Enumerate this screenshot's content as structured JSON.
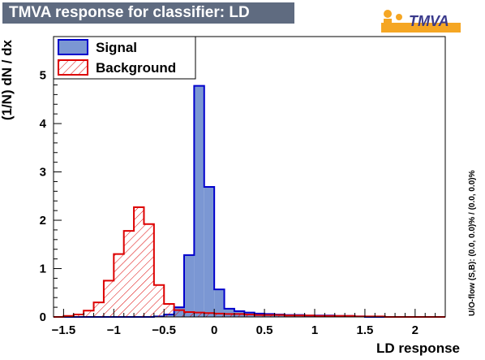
{
  "header": {
    "title": "TMVA response for classifier: LD",
    "logo_text": "TMVA"
  },
  "chart_data": {
    "type": "bar",
    "xlabel": "LD response",
    "ylabel": "(1/N) dN  /  dx",
    "side_label": "U/O-flow (S,B): (0.0, 0.0)% / (0.0, 0.0)%",
    "xlim": [
      -1.6,
      2.3
    ],
    "ylim": [
      0,
      5.8
    ],
    "x_ticks": [
      "-1.5",
      "-1",
      "-0.5",
      "0",
      "0.5",
      "1",
      "1.5",
      "2"
    ],
    "y_ticks": [
      "0",
      "1",
      "2",
      "3",
      "4",
      "5"
    ],
    "bin_edges": [
      -1.6,
      -1.5,
      -1.4,
      -1.3,
      -1.2,
      -1.1,
      -1.0,
      -0.9,
      -0.8,
      -0.7,
      -0.6,
      -0.5,
      -0.4,
      -0.3,
      -0.2,
      -0.1,
      0.0,
      0.1,
      0.2,
      0.3,
      0.4,
      0.5,
      0.6,
      0.7,
      0.8,
      0.9,
      1.0,
      1.1,
      1.2,
      1.3,
      1.4,
      1.5,
      1.6,
      1.7,
      1.8,
      1.9,
      2.0,
      2.1,
      2.2,
      2.3
    ],
    "legend_position": "top-left",
    "series": [
      {
        "name": "Signal",
        "fill": "#7b97d3",
        "stroke": "#0000cc",
        "pattern": "solid",
        "values": [
          0,
          0,
          0,
          0,
          0,
          0,
          0,
          0,
          0,
          0,
          0.01,
          0.05,
          0.2,
          1.28,
          4.78,
          2.69,
          0.57,
          0.17,
          0.12,
          0.09,
          0.07,
          0.06,
          0.05,
          0.04,
          0.04,
          0.03,
          0.03,
          0.03,
          0.02,
          0.02,
          0.01,
          0,
          0,
          0,
          0,
          0,
          0,
          0,
          0
        ]
      },
      {
        "name": "Background",
        "fill": "#ffffff",
        "stroke": "#dd0000",
        "pattern": "hatched",
        "values": [
          0,
          0.02,
          0.05,
          0.13,
          0.3,
          0.75,
          1.3,
          1.78,
          2.27,
          1.92,
          0.66,
          0.27,
          0.14,
          0.1,
          0.09,
          0.08,
          0.07,
          0.06,
          0.06,
          0.05,
          0.04,
          0.04,
          0.04,
          0.03,
          0.03,
          0.03,
          0.02,
          0.02,
          0.02,
          0.02,
          0.01,
          0.01,
          0.01,
          0,
          0,
          0,
          0,
          0,
          0
        ]
      }
    ]
  }
}
